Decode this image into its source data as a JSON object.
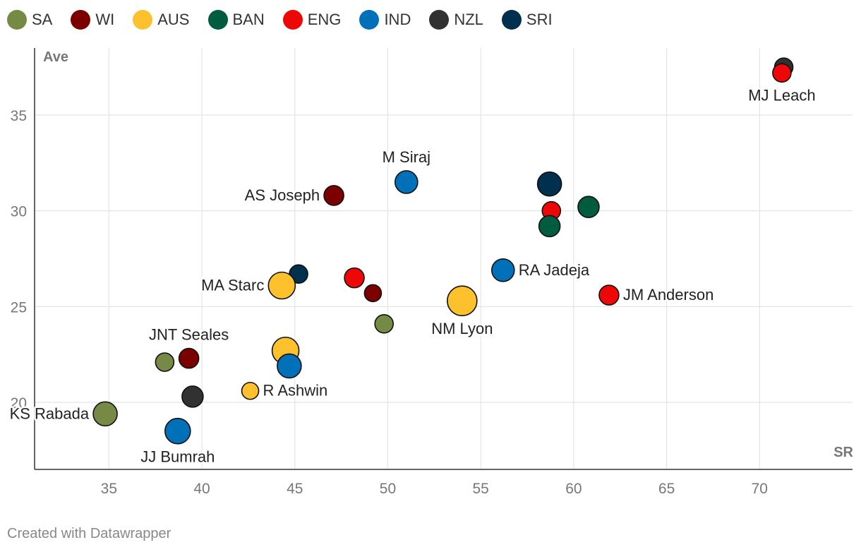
{
  "chart_data": {
    "type": "scatter",
    "title": "",
    "xlabel": "SR",
    "ylabel": "Ave",
    "xlim": [
      31,
      75
    ],
    "ylim": [
      16.5,
      38.5
    ],
    "xticks": [
      35,
      40,
      45,
      50,
      55,
      60,
      65,
      70
    ],
    "yticks": [
      20,
      25,
      30,
      35
    ],
    "grid": true,
    "legend_position": "top-left",
    "teams": [
      {
        "key": "SA",
        "name": "SA",
        "color": "#778a45"
      },
      {
        "key": "WI",
        "name": "WI",
        "color": "#7b0000"
      },
      {
        "key": "AUS",
        "name": "AUS",
        "color": "#fcc12c"
      },
      {
        "key": "BAN",
        "name": "BAN",
        "color": "#005c3e"
      },
      {
        "key": "ENG",
        "name": "ENG",
        "color": "#ee0707"
      },
      {
        "key": "IND",
        "name": "IND",
        "color": "#0071b8"
      },
      {
        "key": "NZL",
        "name": "NZL",
        "color": "#313131"
      },
      {
        "key": "SRI",
        "name": "SRI",
        "color": "#012f4e"
      }
    ],
    "points": [
      {
        "team": "NZL",
        "sr": 71.3,
        "ave": 37.5,
        "size": 13,
        "label": ""
      },
      {
        "team": "ENG",
        "sr": 71.2,
        "ave": 37.2,
        "size": 13,
        "label": "MJ Leach",
        "lpos": "below"
      },
      {
        "team": "IND",
        "sr": 51.0,
        "ave": 31.5,
        "size": 16,
        "label": "M Siraj",
        "lpos": "above"
      },
      {
        "team": "WI",
        "sr": 47.1,
        "ave": 30.8,
        "size": 14,
        "label": "AS Joseph",
        "lpos": "left"
      },
      {
        "team": "SRI",
        "sr": 58.7,
        "ave": 31.4,
        "size": 17,
        "label": ""
      },
      {
        "team": "ENG",
        "sr": 58.8,
        "ave": 30.0,
        "size": 13,
        "label": ""
      },
      {
        "team": "BAN",
        "sr": 60.8,
        "ave": 30.2,
        "size": 15,
        "label": ""
      },
      {
        "team": "BAN",
        "sr": 58.7,
        "ave": 29.2,
        "size": 15,
        "label": ""
      },
      {
        "team": "IND",
        "sr": 56.2,
        "ave": 26.9,
        "size": 16,
        "label": "RA Jadeja",
        "lpos": "right"
      },
      {
        "team": "ENG",
        "sr": 61.9,
        "ave": 25.6,
        "size": 14,
        "label": "JM Anderson",
        "lpos": "right"
      },
      {
        "team": "SRI",
        "sr": 45.2,
        "ave": 26.7,
        "size": 13,
        "label": ""
      },
      {
        "team": "AUS",
        "sr": 44.3,
        "ave": 26.1,
        "size": 19,
        "label": "MA Starc",
        "lpos": "left"
      },
      {
        "team": "ENG",
        "sr": 48.2,
        "ave": 26.5,
        "size": 14,
        "label": ""
      },
      {
        "team": "WI",
        "sr": 49.2,
        "ave": 25.7,
        "size": 12,
        "label": ""
      },
      {
        "team": "AUS",
        "sr": 54.0,
        "ave": 25.3,
        "size": 21,
        "label": "NM Lyon",
        "lpos": "below"
      },
      {
        "team": "SA",
        "sr": 49.8,
        "ave": 24.1,
        "size": 13,
        "label": ""
      },
      {
        "team": "AUS",
        "sr": 44.5,
        "ave": 22.7,
        "size": 19,
        "label": ""
      },
      {
        "team": "IND",
        "sr": 44.7,
        "ave": 21.9,
        "size": 17,
        "label": ""
      },
      {
        "team": "SA",
        "sr": 38.0,
        "ave": 22.1,
        "size": 13,
        "label": ""
      },
      {
        "team": "WI",
        "sr": 39.3,
        "ave": 22.3,
        "size": 14,
        "label": "JNT Seales",
        "lpos": "above"
      },
      {
        "team": "AUS",
        "sr": 42.6,
        "ave": 20.6,
        "size": 12,
        "label": "R Ashwin",
        "lpos": "right"
      },
      {
        "team": "NZL",
        "sr": 39.5,
        "ave": 20.3,
        "size": 15,
        "label": ""
      },
      {
        "team": "SA",
        "sr": 34.8,
        "ave": 19.4,
        "size": 17,
        "label": "KS Rabada",
        "lpos": "left"
      },
      {
        "team": "IND",
        "sr": 38.7,
        "ave": 18.5,
        "size": 18,
        "label": "JJ Bumrah",
        "lpos": "below"
      }
    ]
  },
  "footer": {
    "credit": "Created with Datawrapper"
  }
}
